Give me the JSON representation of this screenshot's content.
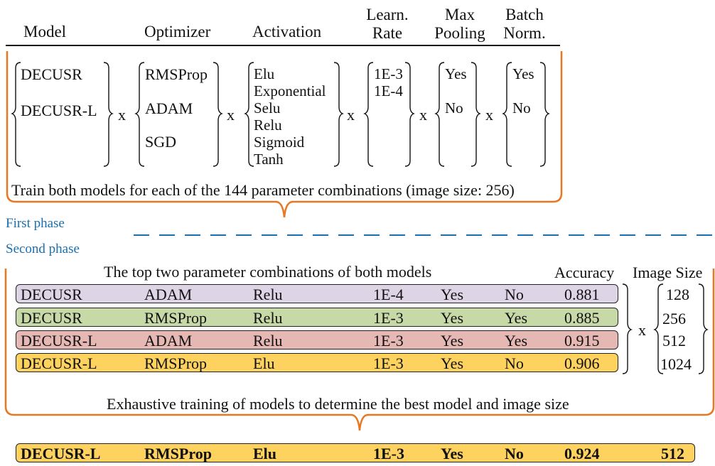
{
  "headers": {
    "model": "Model",
    "optimizer": "Optimizer",
    "activation": "Activation",
    "learn_rate": [
      "Learn.",
      "Rate"
    ],
    "max_pooling": [
      "Max",
      "Pooling"
    ],
    "batch_norm": [
      "Batch",
      "Norm."
    ]
  },
  "phase1": {
    "models": [
      "DECUSR",
      "DECUSR-L"
    ],
    "optimizers": [
      "RMSProp",
      "ADAM",
      "SGD"
    ],
    "activations": [
      "Elu",
      "Exponential",
      "Selu",
      "Relu",
      "Sigmoid",
      "Tanh"
    ],
    "learn_rates": [
      "1E-3",
      "1E-4"
    ],
    "max_pooling": [
      "Yes",
      "No"
    ],
    "batch_norm": [
      "Yes",
      "No"
    ],
    "times": "x",
    "caption": "Train both models for each of the 144 parameter combinations (image size: 256)"
  },
  "phases": {
    "first": "First  phase",
    "second": "Second phase"
  },
  "phase2": {
    "title": "The top two parameter combinations of both models",
    "accuracy_header": "Accuracy",
    "image_size_header": "Image Size",
    "rows": [
      {
        "model": "DECUSR",
        "optimizer": "ADAM",
        "activation": "Relu",
        "lr": "1E-4",
        "pool": "Yes",
        "bn": "No",
        "acc": "0.881",
        "color": "#ddd5e6"
      },
      {
        "model": "DECUSR",
        "optimizer": "RMSProp",
        "activation": "Relu",
        "lr": "1E-3",
        "pool": "Yes",
        "bn": "Yes",
        "acc": "0.885",
        "color": "#c8d9a8"
      },
      {
        "model": "DECUSR-L",
        "optimizer": "ADAM",
        "activation": "Relu",
        "lr": "1E-3",
        "pool": "Yes",
        "bn": "Yes",
        "acc": "0.915",
        "color": "#e6b8b4"
      },
      {
        "model": "DECUSR-L",
        "optimizer": "RMSProp",
        "activation": "Elu",
        "lr": "1E-3",
        "pool": "Yes",
        "bn": "No",
        "acc": "0.906",
        "color": "#fdd25e"
      }
    ],
    "image_sizes": [
      "128",
      "256",
      "512",
      "1024"
    ],
    "caption": "Exhaustive training of models to determine the best model and  image size"
  },
  "final": {
    "model": "DECUSR-L",
    "optimizer": "RMSProp",
    "activation": "Elu",
    "lr": "1E-3",
    "pool": "Yes",
    "bn": "No",
    "acc": "0.924",
    "image_size": "512",
    "color": "#fdd25e"
  },
  "colors": {
    "frame": "#e87722",
    "dash": "#1a6fb0"
  }
}
